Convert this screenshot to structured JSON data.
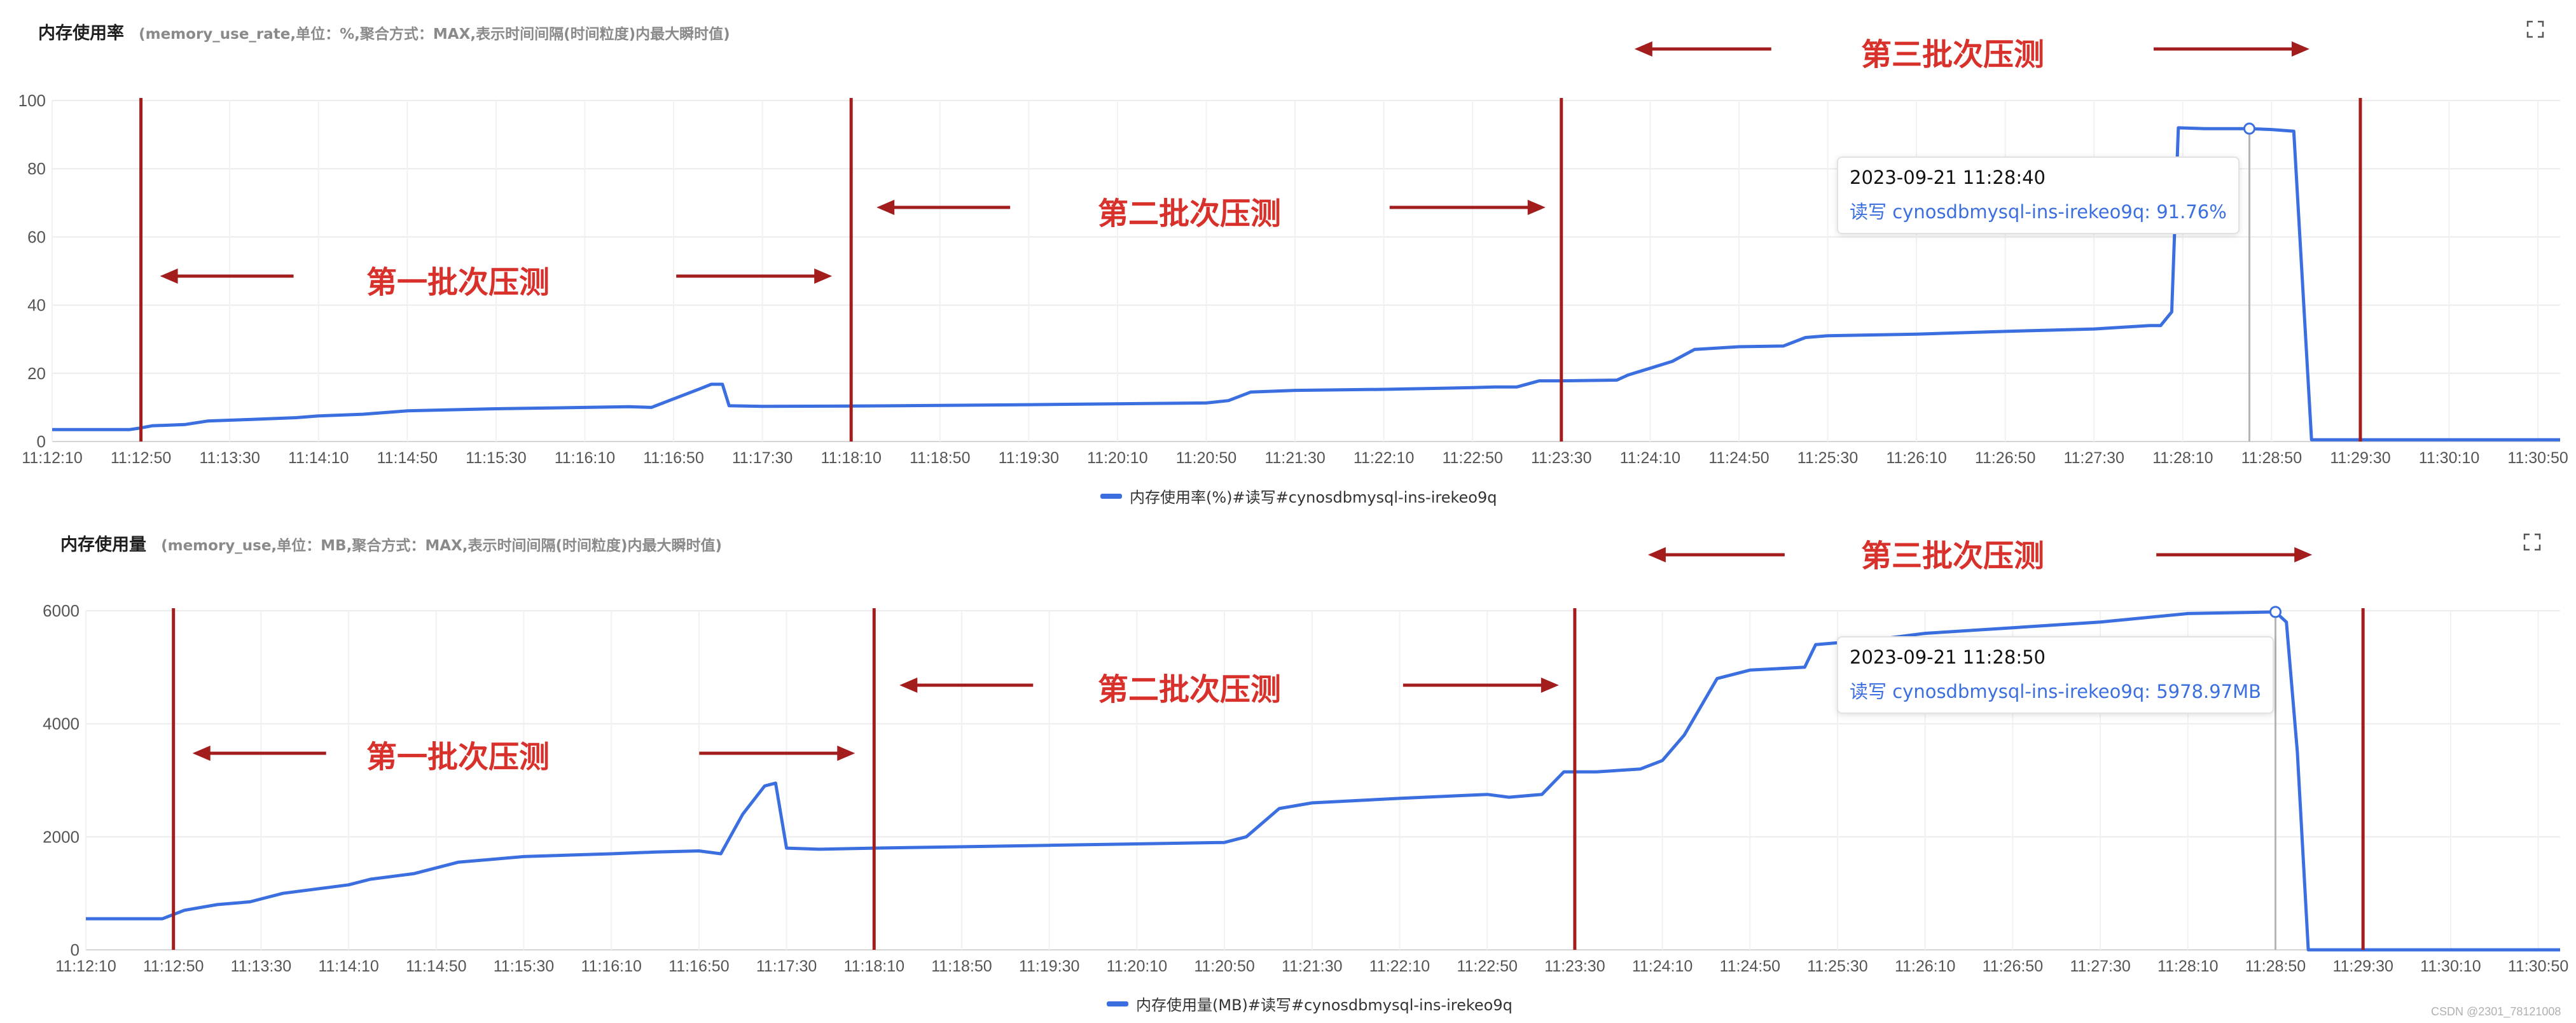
{
  "colors": {
    "series": "#3b6fe0",
    "marker": "#a31d1d",
    "annotation": "#d8302b"
  },
  "icons": {
    "expand": "expand-icon",
    "arrow": "arrow-icon"
  },
  "batches": [
    "第一批次压测",
    "第二批次压测",
    "第三批次压测"
  ],
  "watermark": "CSDN @2301_78121008",
  "chart_data": [
    {
      "type": "line",
      "title": "内存使用率",
      "subtitle": "(memory_use_rate,单位：%,聚合方式：MAX,表示时间间隔(时间粒度)内最大瞬时值)",
      "legend": "内存使用率(%)#读写#cynosdbmysql-ins-irekeo9q",
      "x_ticks": [
        "11:12:10",
        "11:12:50",
        "11:13:30",
        "11:14:10",
        "11:14:50",
        "11:15:30",
        "11:16:10",
        "11:16:50",
        "11:17:30",
        "11:18:10",
        "11:18:50",
        "11:19:30",
        "11:20:10",
        "11:20:50",
        "11:21:30",
        "11:22:10",
        "11:22:50",
        "11:23:30",
        "11:24:10",
        "11:24:50",
        "11:25:30",
        "11:26:10",
        "11:26:50",
        "11:27:30",
        "11:28:10",
        "11:28:50",
        "11:29:30",
        "11:30:10",
        "11:30:50"
      ],
      "y_ticks": [
        0,
        20,
        40,
        60,
        80,
        100
      ],
      "ylim": [
        0,
        100
      ],
      "series": [
        {
          "name": "内存使用率(%)#读写#cynosdbmysql-ins-irekeo9q",
          "points": [
            [
              "11:12:10",
              3.5
            ],
            [
              "11:12:45",
              3.5
            ],
            [
              "11:12:50",
              4.0
            ],
            [
              "11:12:55",
              4.6
            ],
            [
              "11:13:10",
              5.0
            ],
            [
              "11:13:20",
              6.0
            ],
            [
              "11:13:40",
              6.5
            ],
            [
              "11:14:00",
              7.0
            ],
            [
              "11:14:10",
              7.5
            ],
            [
              "11:14:30",
              8.0
            ],
            [
              "11:14:50",
              9.0
            ],
            [
              "11:15:30",
              9.6
            ],
            [
              "11:16:10",
              10.0
            ],
            [
              "11:16:30",
              10.2
            ],
            [
              "11:16:40",
              10.0
            ],
            [
              "11:16:48",
              12.0
            ],
            [
              "11:17:02",
              15.5
            ],
            [
              "11:17:07",
              16.8
            ],
            [
              "11:17:12",
              16.8
            ],
            [
              "11:17:15",
              10.5
            ],
            [
              "11:17:30",
              10.3
            ],
            [
              "11:18:10",
              10.4
            ],
            [
              "11:19:30",
              10.8
            ],
            [
              "11:20:50",
              11.3
            ],
            [
              "11:21:00",
              12.0
            ],
            [
              "11:21:10",
              14.5
            ],
            [
              "11:21:30",
              15.0
            ],
            [
              "11:22:10",
              15.3
            ],
            [
              "11:22:50",
              15.8
            ],
            [
              "11:23:00",
              16.0
            ],
            [
              "11:23:10",
              16.0
            ],
            [
              "11:23:20",
              17.8
            ],
            [
              "11:23:30",
              17.8
            ],
            [
              "11:23:55",
              18.0
            ],
            [
              "11:24:00",
              19.5
            ],
            [
              "11:24:10",
              21.5
            ],
            [
              "11:24:20",
              23.5
            ],
            [
              "11:24:30",
              27.0
            ],
            [
              "11:24:50",
              27.8
            ],
            [
              "11:25:10",
              28.0
            ],
            [
              "11:25:20",
              30.5
            ],
            [
              "11:25:30",
              31.0
            ],
            [
              "11:26:10",
              31.5
            ],
            [
              "11:26:50",
              32.3
            ],
            [
              "11:27:30",
              33.0
            ],
            [
              "11:27:55",
              34.0
            ],
            [
              "11:28:00",
              34.0
            ],
            [
              "11:28:05",
              38.0
            ],
            [
              "11:28:08",
              92.0
            ],
            [
              "11:28:20",
              91.76
            ],
            [
              "11:28:40",
              91.76
            ],
            [
              "11:28:50",
              91.5
            ],
            [
              "11:29:00",
              91.0
            ],
            [
              "11:29:08",
              0.5
            ],
            [
              "11:29:30",
              0.5
            ],
            [
              "11:30:50",
              0.5
            ],
            [
              "11:31:00",
              0.5
            ]
          ]
        }
      ],
      "markers": [
        "11:12:50",
        "11:18:10",
        "11:23:30",
        "11:29:30"
      ],
      "tooltip": {
        "time": "2023-09-21 11:28:40",
        "label": "读写 cynosdbmysql-ins-irekeo9q: 91.76%",
        "x": "11:28:40",
        "y": 91.76
      }
    },
    {
      "type": "line",
      "title": "内存使用量",
      "subtitle": "(memory_use,单位：MB,聚合方式：MAX,表示时间间隔(时间粒度)内最大瞬时值)",
      "legend": "内存使用量(MB)#读写#cynosdbmysql-ins-irekeo9q",
      "x_ticks": [
        "11:12:10",
        "11:12:50",
        "11:13:30",
        "11:14:10",
        "11:14:50",
        "11:15:30",
        "11:16:10",
        "11:16:50",
        "11:17:30",
        "11:18:10",
        "11:18:50",
        "11:19:30",
        "11:20:10",
        "11:20:50",
        "11:21:30",
        "11:22:10",
        "11:22:50",
        "11:23:30",
        "11:24:10",
        "11:24:50",
        "11:25:30",
        "11:26:10",
        "11:26:50",
        "11:27:30",
        "11:28:10",
        "11:28:50",
        "11:29:30",
        "11:30:10",
        "11:30:50"
      ],
      "y_ticks": [
        0,
        2000,
        4000,
        6000
      ],
      "ylim": [
        0,
        6000
      ],
      "series": [
        {
          "name": "内存使用量(MB)#读写#cynosdbmysql-ins-irekeo9q",
          "points": [
            [
              "11:12:10",
              550
            ],
            [
              "11:12:45",
              550
            ],
            [
              "11:12:55",
              700
            ],
            [
              "11:13:10",
              800
            ],
            [
              "11:13:25",
              850
            ],
            [
              "11:13:30",
              900
            ],
            [
              "11:13:40",
              1000
            ],
            [
              "11:14:00",
              1100
            ],
            [
              "11:14:10",
              1150
            ],
            [
              "11:14:20",
              1250
            ],
            [
              "11:14:40",
              1350
            ],
            [
              "11:14:50",
              1450
            ],
            [
              "11:15:00",
              1550
            ],
            [
              "11:15:30",
              1650
            ],
            [
              "11:16:10",
              1700
            ],
            [
              "11:16:30",
              1730
            ],
            [
              "11:16:50",
              1750
            ],
            [
              "11:17:00",
              1700
            ],
            [
              "11:17:10",
              2400
            ],
            [
              "11:17:20",
              2900
            ],
            [
              "11:17:25",
              2950
            ],
            [
              "11:17:30",
              1800
            ],
            [
              "11:17:45",
              1780
            ],
            [
              "11:18:10",
              1800
            ],
            [
              "11:19:30",
              1850
            ],
            [
              "11:20:50",
              1900
            ],
            [
              "11:21:00",
              2000
            ],
            [
              "11:21:15",
              2500
            ],
            [
              "11:21:30",
              2600
            ],
            [
              "11:22:10",
              2680
            ],
            [
              "11:22:50",
              2750
            ],
            [
              "11:23:00",
              2700
            ],
            [
              "11:23:15",
              2750
            ],
            [
              "11:23:25",
              3150
            ],
            [
              "11:23:40",
              3150
            ],
            [
              "11:24:00",
              3200
            ],
            [
              "11:24:10",
              3350
            ],
            [
              "11:24:20",
              3800
            ],
            [
              "11:24:35",
              4800
            ],
            [
              "11:24:50",
              4950
            ],
            [
              "11:25:15",
              5000
            ],
            [
              "11:25:20",
              5400
            ],
            [
              "11:25:50",
              5500
            ],
            [
              "11:26:10",
              5600
            ],
            [
              "11:26:50",
              5700
            ],
            [
              "11:27:30",
              5800
            ],
            [
              "11:28:10",
              5950
            ],
            [
              "11:28:50",
              5978.97
            ],
            [
              "11:28:55",
              5800
            ],
            [
              "11:29:00",
              3500
            ],
            [
              "11:29:05",
              0
            ],
            [
              "11:30:50",
              0
            ],
            [
              "11:31:00",
              0
            ]
          ]
        }
      ],
      "markers": [
        "11:12:50",
        "11:18:10",
        "11:23:30",
        "11:29:30"
      ],
      "tooltip": {
        "time": "2023-09-21 11:28:50",
        "label": "读写 cynosdbmysql-ins-irekeo9q: 5978.97MB",
        "x": "11:28:50",
        "y": 5978.97
      }
    }
  ]
}
